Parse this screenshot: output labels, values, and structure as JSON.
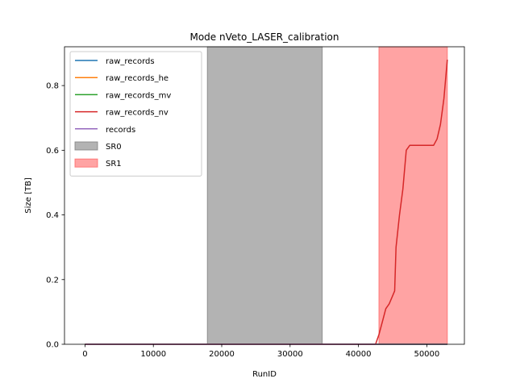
{
  "chart_data": {
    "type": "line",
    "title": "Mode nVeto_LASER_calibration",
    "xlabel": "RunID",
    "ylabel": "Size [TB]",
    "xlim": [
      -3000,
      55500
    ],
    "ylim": [
      0,
      0.92
    ],
    "x_ticks": [
      0,
      10000,
      20000,
      30000,
      40000,
      50000
    ],
    "y_ticks": [
      0.0,
      0.2,
      0.4,
      0.6,
      0.8
    ],
    "x_tick_labels": [
      "0",
      "10000",
      "20000",
      "30000",
      "40000",
      "50000"
    ],
    "y_tick_labels": [
      "0.0",
      "0.2",
      "0.4",
      "0.6",
      "0.8"
    ],
    "grid": false,
    "legend_position": "upper-left",
    "series": [
      {
        "name": "raw_records",
        "color": "#1f77b4",
        "x": [
          0,
          53000
        ],
        "y": [
          0,
          0
        ]
      },
      {
        "name": "raw_records_he",
        "color": "#ff7f0e",
        "x": [
          0,
          53000
        ],
        "y": [
          0,
          0
        ]
      },
      {
        "name": "raw_records_mv",
        "color": "#2ca02c",
        "x": [
          0,
          53000
        ],
        "y": [
          0,
          0
        ]
      },
      {
        "name": "raw_records_nv",
        "color": "#d62728",
        "x": [
          0,
          42500,
          43000,
          43500,
          44000,
          44500,
          45000,
          45300,
          45500,
          46000,
          46500,
          47000,
          47500,
          48000,
          49000,
          50000,
          51000,
          51500,
          52000,
          52500,
          53000
        ],
        "y": [
          0,
          0,
          0.03,
          0.07,
          0.11,
          0.125,
          0.15,
          0.165,
          0.3,
          0.4,
          0.48,
          0.6,
          0.615,
          0.615,
          0.615,
          0.615,
          0.615,
          0.635,
          0.68,
          0.76,
          0.88
        ]
      },
      {
        "name": "records",
        "color": "#9467bd",
        "x": [
          0,
          53000
        ],
        "y": [
          0,
          0
        ]
      }
    ],
    "spans": [
      {
        "name": "SR0",
        "x_start": 17900,
        "x_end": 34700,
        "color": "#808080"
      },
      {
        "name": "SR1",
        "x_start": 43000,
        "x_end": 53000,
        "color": "#ff6666"
      }
    ]
  }
}
